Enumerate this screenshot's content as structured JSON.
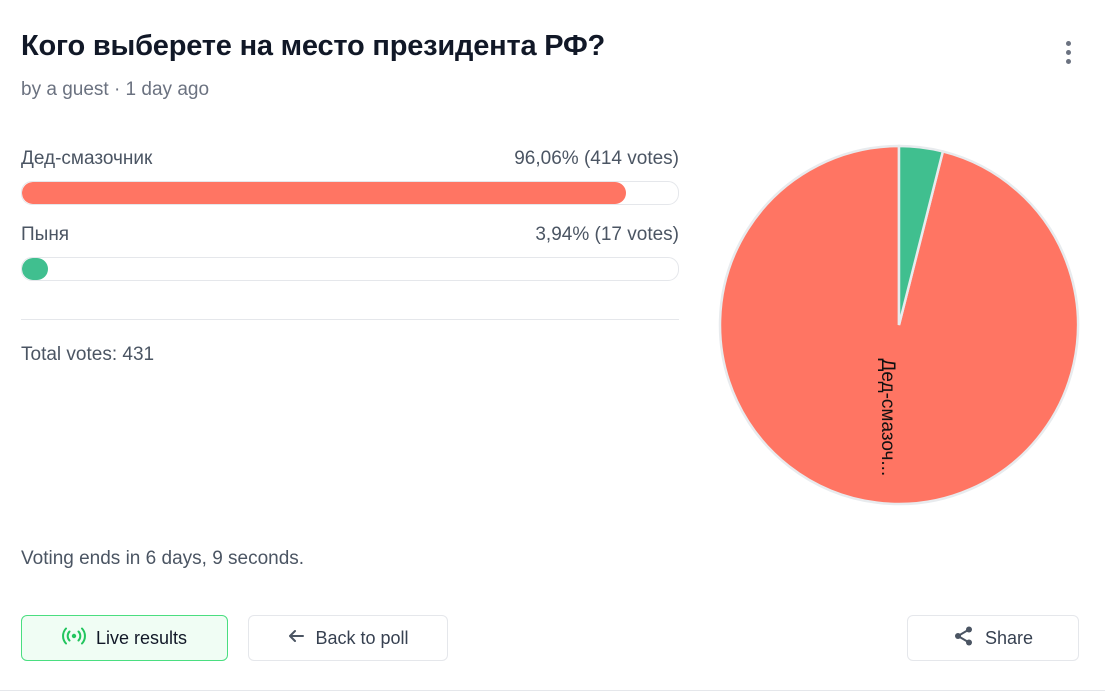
{
  "poll": {
    "title": "Кого выберете на место президента РФ?",
    "meta": "by a guest · 1 day ago",
    "options": [
      {
        "label": "Дед-смазочник",
        "result": "96,06% (414 votes)",
        "percent": 96.06,
        "color": "#ff7563"
      },
      {
        "label": "Пыня",
        "result": "3,94% (17 votes)",
        "percent": 3.94,
        "color": "#40bf8f"
      }
    ],
    "total_votes": "Total votes: 431",
    "ends": "Voting ends in 6 days, 9 seconds."
  },
  "buttons": {
    "live_results": "Live results",
    "back_to_poll": "Back to poll",
    "share": "Share"
  },
  "icons": {
    "menu": "kebab-menu-icon",
    "live": "broadcast-icon",
    "back": "arrow-left-icon",
    "share": "share-icon"
  },
  "chart_data": {
    "type": "pie",
    "slices": [
      {
        "label": "Дед-смазочник",
        "value": 96.06,
        "slice_label": "Дед-смазоч...",
        "color": "#ff7563"
      },
      {
        "label": "Пыня",
        "value": 3.94,
        "slice_label": "",
        "color": "#40bf8f"
      }
    ]
  }
}
